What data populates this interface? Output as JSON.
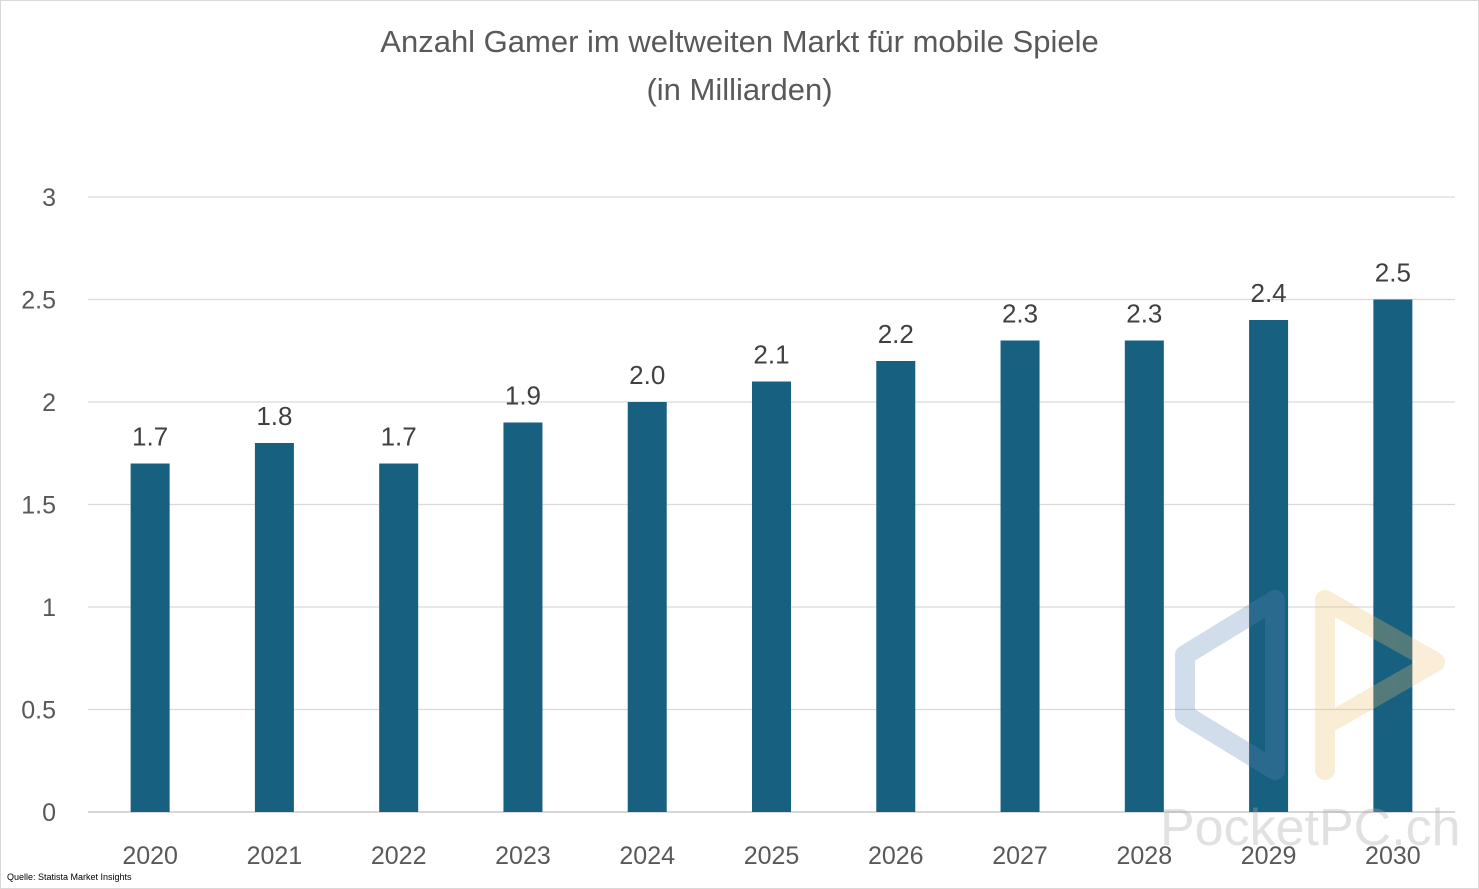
{
  "chart_data": {
    "type": "bar",
    "title_lines": [
      "Anzahl Gamer im weltweiten Markt für mobile Spiele",
      "(in Milliarden)"
    ],
    "categories": [
      "2020",
      "2021",
      "2022",
      "2023",
      "2024",
      "2025",
      "2026",
      "2027",
      "2028",
      "2029",
      "2030"
    ],
    "values": [
      1.7,
      1.8,
      1.7,
      1.9,
      2.0,
      2.1,
      2.2,
      2.3,
      2.3,
      2.4,
      2.5
    ],
    "data_labels": [
      "1.7",
      "1.8",
      "1.7",
      "1.9",
      "2.0",
      "2.1",
      "2.2",
      "2.3",
      "2.3",
      "2.4",
      "2.5"
    ],
    "y_ticks": [
      "0",
      "0.5",
      "1",
      "1.5",
      "2",
      "2.5",
      "3"
    ],
    "y_tick_values": [
      0,
      0.5,
      1,
      1.5,
      2,
      2.5,
      3
    ],
    "ylim": [
      0,
      3
    ],
    "xlabel": "",
    "ylabel": "",
    "grid": true,
    "legend": "none",
    "bar_color": "#17607f"
  },
  "source": "Quelle: Statista Market Insights",
  "watermark": "PocketPC.ch"
}
